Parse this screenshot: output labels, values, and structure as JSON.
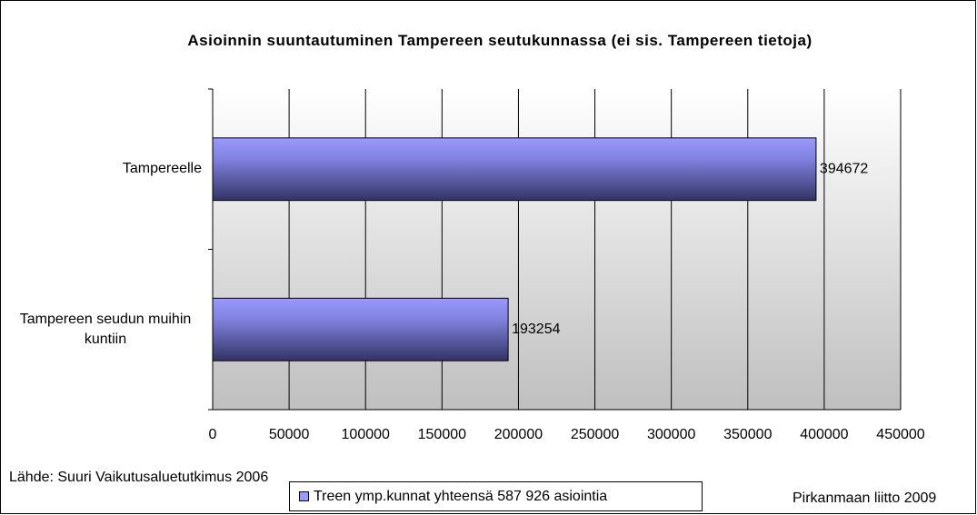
{
  "chart_data": {
    "type": "bar",
    "orientation": "horizontal",
    "title": "Asioinnin suuntautuminen Tampereen seutukunnassa (ei sis. Tampereen tietoja)",
    "categories": [
      "Tampereelle",
      "Tampereen seudun muihin kuntiin"
    ],
    "series": [
      {
        "name": "Treen ymp.kunnat yhteensä 587 926 asiointia",
        "color": "#9999ff",
        "values": [
          394672,
          193254
        ]
      }
    ],
    "xlim": [
      0,
      450000
    ],
    "xticks": [
      0,
      50000,
      100000,
      150000,
      200000,
      250000,
      300000,
      350000,
      400000,
      450000
    ],
    "grid": true,
    "legend": "bottom",
    "source": "Lähde: Suuri Vaikutusaluetutkimus 2006",
    "credit": "Pirkanmaan liitto 2009"
  }
}
